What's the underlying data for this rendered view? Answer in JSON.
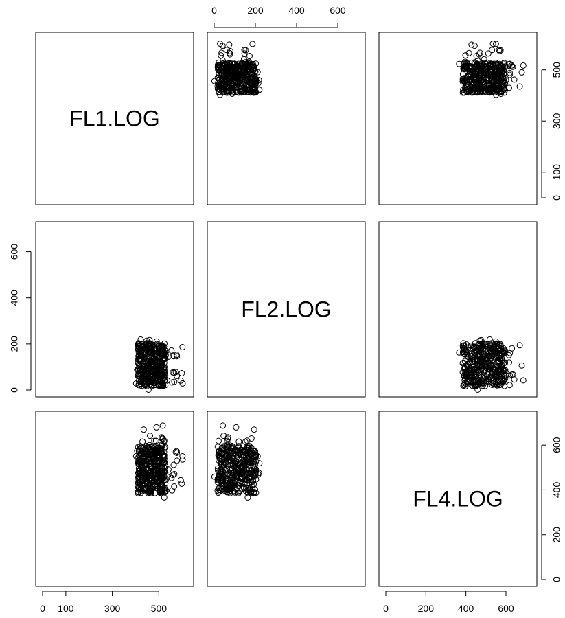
{
  "chart_data": {
    "type": "scatter",
    "layout": "pairs-matrix",
    "variables": [
      "FL1.LOG",
      "FL2.LOG",
      "FL4.LOG"
    ],
    "axes": {
      "FL1.LOG": {
        "range": [
          0,
          620
        ],
        "ticks": [
          0,
          100,
          300,
          500
        ],
        "alt_ticks": [
          0,
          100,
          300,
          500
        ]
      },
      "FL2.LOG": {
        "range": [
          0,
          700
        ],
        "ticks": [
          0,
          200,
          400,
          600
        ]
      },
      "FL4.LOG": {
        "range": [
          0,
          720
        ],
        "ticks": [
          0,
          200,
          400,
          600
        ]
      }
    },
    "tick_labels": {
      "top": [
        "0",
        "200",
        "400",
        "600"
      ],
      "right_top": [
        "0",
        "100",
        "300",
        "500"
      ],
      "left_middle": [
        "0",
        "200",
        "400",
        "600"
      ],
      "bottom_left": [
        "0",
        "100",
        "300",
        "500"
      ],
      "bottom_right": [
        "0",
        "200",
        "400",
        "600"
      ],
      "right_bottom": [
        "0",
        "200",
        "400",
        "600"
      ]
    },
    "clusters": {
      "FL1.LOG": {
        "center": 470,
        "min": 400,
        "max": 610
      },
      "FL2.LOG": {
        "center": 110,
        "min": 0,
        "max": 230
      },
      "FL4.LOG": {
        "center": 490,
        "min": 365,
        "max": 690
      }
    },
    "n_points": 420,
    "marker": "open-circle",
    "grid": false,
    "legend": "none"
  },
  "colors": {
    "points": "#000000",
    "frame": "#000000",
    "background": "#ffffff"
  }
}
